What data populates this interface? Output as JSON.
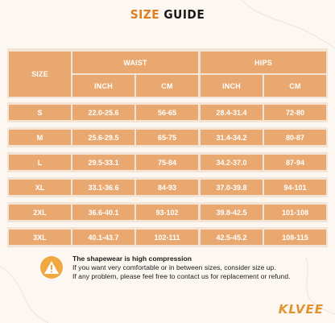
{
  "title": {
    "part1": "SIZE",
    "part2": "GUIDE"
  },
  "table": {
    "size_header": "SIZE",
    "waist_header": "WAIST",
    "hips_header": "HIPS",
    "units": [
      "INCH",
      "CM",
      "INCH",
      "CM"
    ],
    "rows": [
      {
        "size": "S",
        "waist_inch": "22.0-25.6",
        "waist_cm": "56-65",
        "hips_inch": "28.4-31.4",
        "hips_cm": "72-80"
      },
      {
        "size": "M",
        "waist_inch": "25.6-29.5",
        "waist_cm": "65-75",
        "hips_inch": "31.4-34.2",
        "hips_cm": "80-87"
      },
      {
        "size": "L",
        "waist_inch": "29.5-33.1",
        "waist_cm": "75-84",
        "hips_inch": "34.2-37.0",
        "hips_cm": "87-94"
      },
      {
        "size": "XL",
        "waist_inch": "33.1-36.6",
        "waist_cm": "84-93",
        "hips_inch": "37.0-39.8",
        "hips_cm": "94-101"
      },
      {
        "size": "2XL",
        "waist_inch": "36.6-40.1",
        "waist_cm": "93-102",
        "hips_inch": "39.8-42.5",
        "hips_cm": "101-108"
      },
      {
        "size": "3XL",
        "waist_inch": "40.1-43.7",
        "waist_cm": "102-111",
        "hips_inch": "42.5-45.2",
        "hips_cm": "108-115"
      }
    ]
  },
  "note": {
    "icon": "warning-icon",
    "heading": "The shapewear is high compression",
    "line1": "If you want very comfortable or in between sizes, consider size up.",
    "line2": "If any problem, please feel free to contact us for replacement or refund."
  },
  "brand": "KLVEE",
  "colors": {
    "accent": "#e9a86f",
    "band": "#f3e4d5",
    "background": "#fdf7f2",
    "title_accent": "#e07d1e",
    "logo": "#e1932f",
    "warning": "#f0a843"
  }
}
